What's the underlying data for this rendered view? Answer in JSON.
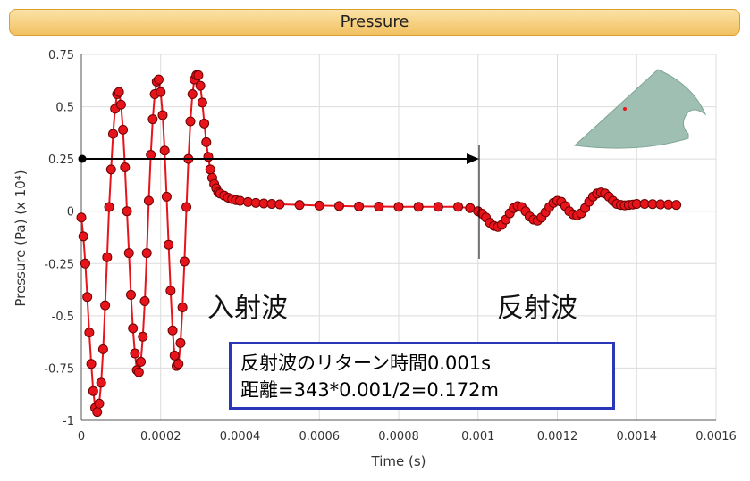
{
  "header": {
    "title": "Pressure"
  },
  "annotations": {
    "incident_label": "入射波",
    "reflected_label": "反射波",
    "note_line1": "反射波のリターン時間0.001s",
    "note_line2": "距離=343*0.001/2=0.172m"
  },
  "colors": {
    "series": "#e8141c",
    "marker_edge": "#6b0000",
    "arrow": "#000000",
    "inset_shape": "#9fbfb2",
    "note_border": "#2a36b8"
  },
  "chart_data": {
    "type": "line",
    "title": "Pressure",
    "xlabel": "Time (s)",
    "ylabel": "Pressure (Pa) (x 10⁴)",
    "xlim": [
      0,
      0.0016
    ],
    "ylim": [
      -1,
      0.75
    ],
    "x_ticks": [
      0,
      0.0002,
      0.0004,
      0.0006,
      0.0008,
      0.001,
      0.0012,
      0.0014,
      0.0016
    ],
    "x_tick_labels": [
      "0",
      "0.0002",
      "0.0004",
      "0.0006",
      "0.0008",
      "0.001",
      "0.0012",
      "0.0014",
      "0.0016"
    ],
    "y_ticks": [
      -1,
      -0.75,
      -0.5,
      -0.25,
      0,
      0.25,
      0.5,
      0.75
    ],
    "y_tick_labels": [
      "-1",
      "-0.75",
      "-0.5",
      "-0.25",
      "0",
      "0.25",
      "0.5",
      "0.75"
    ],
    "grid": true,
    "series": [
      {
        "marker": "circle",
        "x": [
          0.0,
          5e-06,
          1e-05,
          1.5e-05,
          2e-05,
          2.5e-05,
          3e-05,
          3.5e-05,
          4e-05,
          4.5e-05,
          5e-05,
          5.5e-05,
          6e-05,
          6.5e-05,
          7e-05,
          7.5e-05,
          8e-05,
          8.5e-05,
          9e-05,
          9.5e-05,
          0.0001,
          0.000105,
          0.00011,
          0.000115,
          0.00012,
          0.000125,
          0.00013,
          0.000135,
          0.00014,
          0.000145,
          0.00015,
          0.000155,
          0.00016,
          0.000165,
          0.00017,
          0.000175,
          0.00018,
          0.000185,
          0.00019,
          0.000195,
          0.0002,
          0.000205,
          0.00021,
          0.000215,
          0.00022,
          0.000225,
          0.00023,
          0.000235,
          0.00024,
          0.000245,
          0.00025,
          0.000255,
          0.00026,
          0.000265,
          0.00027,
          0.000275,
          0.00028,
          0.000285,
          0.00029,
          0.000295,
          0.0003,
          0.000305,
          0.00031,
          0.000315,
          0.00032,
          0.000325,
          0.00033,
          0.000335,
          0.00034,
          0.000345,
          0.00035,
          0.00036,
          0.00037,
          0.00038,
          0.00039,
          0.0004,
          0.00042,
          0.00044,
          0.00046,
          0.00048,
          0.0005,
          0.00055,
          0.0006,
          0.00065,
          0.0007,
          0.00075,
          0.0008,
          0.00085,
          0.0009,
          0.00095,
          0.00098,
          0.001,
          0.00101,
          0.00102,
          0.00103,
          0.00104,
          0.00105,
          0.00106,
          0.00107,
          0.00108,
          0.00109,
          0.0011,
          0.00111,
          0.00112,
          0.00113,
          0.00114,
          0.00115,
          0.00116,
          0.00117,
          0.00118,
          0.00119,
          0.0012,
          0.00121,
          0.00122,
          0.00123,
          0.00124,
          0.00125,
          0.00126,
          0.00127,
          0.00128,
          0.00129,
          0.0013,
          0.00131,
          0.00132,
          0.00133,
          0.00134,
          0.00135,
          0.00136,
          0.00137,
          0.00138,
          0.00139,
          0.0014,
          0.00142,
          0.00144,
          0.00146,
          0.00148,
          0.0015
        ],
        "y": [
          -0.03,
          -0.12,
          -0.25,
          -0.41,
          -0.58,
          -0.73,
          -0.86,
          -0.94,
          -0.96,
          -0.92,
          -0.82,
          -0.66,
          -0.45,
          -0.22,
          0.02,
          0.2,
          0.37,
          0.49,
          0.56,
          0.57,
          0.51,
          0.39,
          0.21,
          0.0,
          -0.2,
          -0.4,
          -0.56,
          -0.68,
          -0.76,
          -0.77,
          -0.72,
          -0.6,
          -0.43,
          -0.2,
          0.05,
          0.27,
          0.44,
          0.56,
          0.62,
          0.63,
          0.57,
          0.46,
          0.29,
          0.07,
          -0.16,
          -0.38,
          -0.57,
          -0.69,
          -0.74,
          -0.73,
          -0.63,
          -0.46,
          -0.24,
          0.02,
          0.25,
          0.43,
          0.56,
          0.63,
          0.65,
          0.65,
          0.6,
          0.52,
          0.42,
          0.33,
          0.26,
          0.2,
          0.16,
          0.13,
          0.11,
          0.09,
          0.085,
          0.075,
          0.065,
          0.058,
          0.053,
          0.05,
          0.044,
          0.04,
          0.037,
          0.035,
          0.033,
          0.03,
          0.027,
          0.025,
          0.023,
          0.022,
          0.021,
          0.021,
          0.021,
          0.021,
          0.015,
          0.0,
          -0.012,
          -0.03,
          -0.055,
          -0.07,
          -0.075,
          -0.065,
          -0.04,
          -0.01,
          0.015,
          0.025,
          0.02,
          0.0,
          -0.025,
          -0.04,
          -0.045,
          -0.03,
          -0.005,
          0.02,
          0.04,
          0.05,
          0.045,
          0.025,
          0.0,
          -0.015,
          -0.02,
          -0.01,
          0.015,
          0.045,
          0.07,
          0.085,
          0.09,
          0.085,
          0.07,
          0.05,
          0.035,
          0.03,
          0.028,
          0.03,
          0.032,
          0.035,
          0.035,
          0.034,
          0.033,
          0.032,
          0.03
        ]
      }
    ]
  }
}
